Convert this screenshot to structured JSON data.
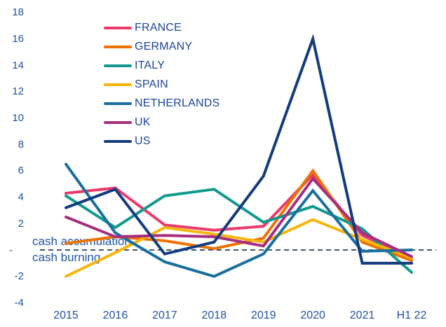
{
  "chart_data": {
    "type": "line",
    "title": "",
    "xlabel": "",
    "ylabel": "",
    "grid": false,
    "legend_position": "top-left-inside",
    "categories": [
      "2015",
      "2016",
      "2017",
      "2018",
      "2019",
      "2020",
      "2021",
      "H1 22"
    ],
    "y_axis": {
      "tick_values": [
        18,
        16,
        14,
        12,
        10,
        8,
        6,
        4,
        2,
        0,
        -2,
        -4
      ],
      "tick_labels": [
        "18",
        "16",
        "14",
        "12",
        "10",
        "8",
        "6",
        "4",
        "2",
        "-",
        "-2",
        "-4"
      ],
      "ylim": [
        -4,
        18
      ]
    },
    "series": [
      {
        "name": "FRANCE",
        "color": "#ea3a6b",
        "values": [
          4.3,
          4.7,
          1.9,
          1.5,
          1.8,
          5.7,
          1.1,
          -0.6
        ]
      },
      {
        "name": "GERMANY",
        "color": "#ee7203",
        "values": [
          0.5,
          1.0,
          0.7,
          0.1,
          0.9,
          6.0,
          0.6,
          -0.8
        ]
      },
      {
        "name": "ITALY",
        "color": "#14998f",
        "values": [
          4.1,
          1.7,
          4.1,
          4.6,
          2.1,
          3.3,
          1.6,
          -1.7
        ]
      },
      {
        "name": "SPAIN",
        "color": "#f6b60d",
        "values": [
          -2.0,
          -0.2,
          1.7,
          1.2,
          0.6,
          2.3,
          0.8,
          -0.6
        ]
      },
      {
        "name": "NETHERLANDS",
        "color": "#1a6f9e",
        "values": [
          6.5,
          1.3,
          -0.9,
          -2.0,
          -0.3,
          4.5,
          -0.1,
          0.0
        ]
      },
      {
        "name": "UK",
        "color": "#a62f80",
        "values": [
          2.5,
          1.0,
          1.1,
          1.0,
          0.3,
          5.4,
          1.3,
          -0.5
        ]
      },
      {
        "name": "US",
        "color": "#143c7e",
        "values": [
          3.2,
          4.6,
          -0.3,
          0.6,
          5.6,
          16.0,
          -1.0,
          -1.0
        ]
      }
    ],
    "zero_line": {
      "style": "dashed",
      "color": "#44546a"
    },
    "annotations": {
      "above": "cash accumulation",
      "below": "cash burning"
    }
  }
}
